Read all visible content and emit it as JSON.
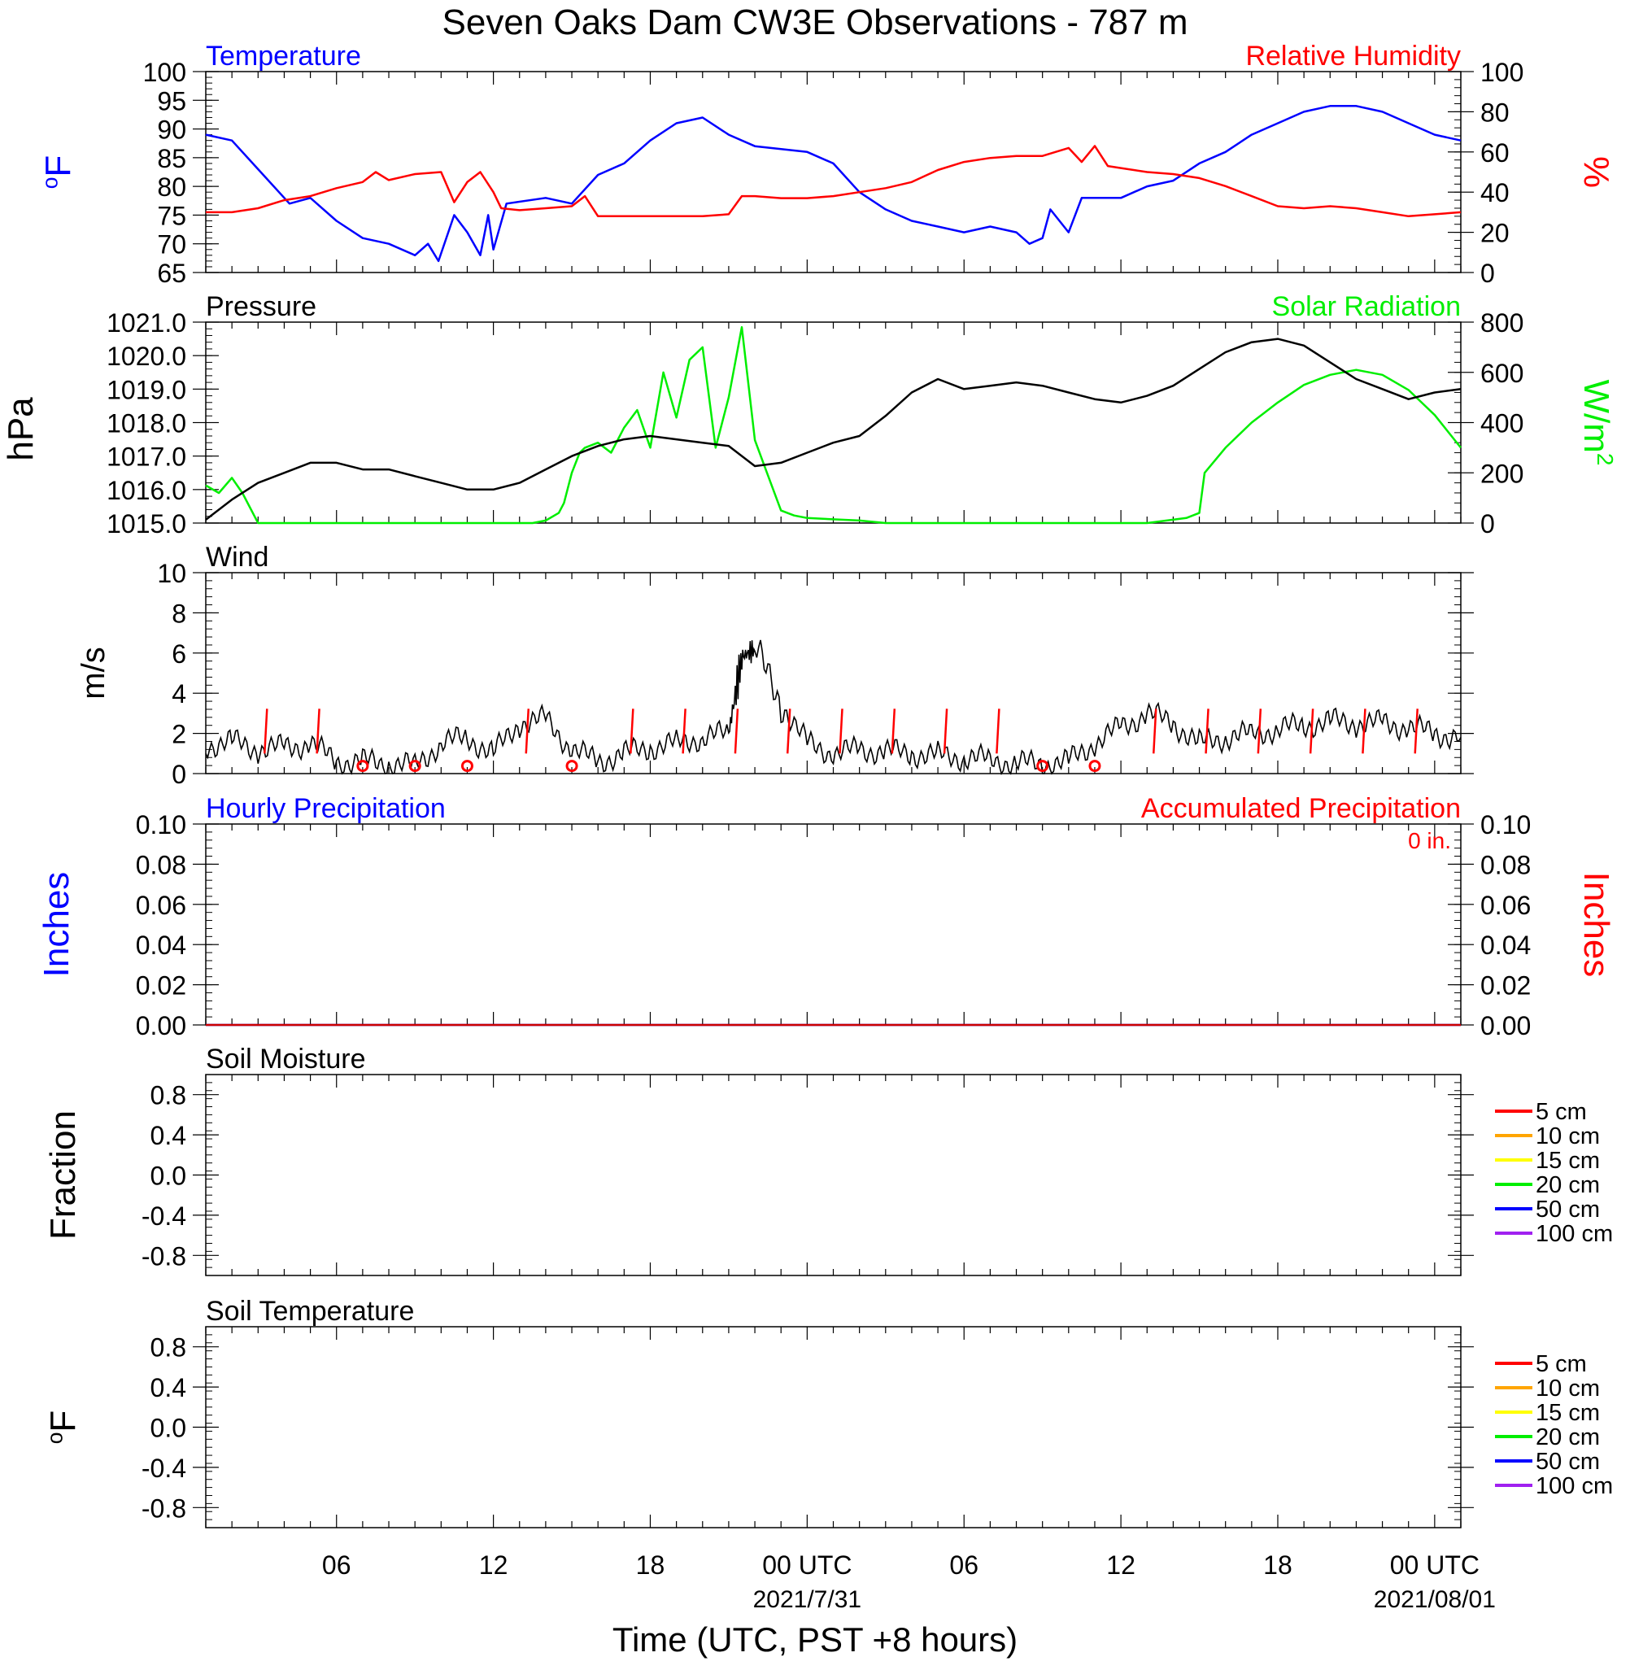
{
  "title": "Seven Oaks Dam CW3E Observations - 787 m",
  "time": {
    "xlabel": "Time (UTC, PST +8 hours)",
    "ticks": [
      {
        "h": 6,
        "label": "06",
        "date": ""
      },
      {
        "h": 12,
        "label": "12",
        "date": ""
      },
      {
        "h": 18,
        "label": "18",
        "date": ""
      },
      {
        "h": 24,
        "label": "00 UTC",
        "date": "2021/7/31"
      },
      {
        "h": 30,
        "label": "06",
        "date": ""
      },
      {
        "h": 36,
        "label": "12",
        "date": ""
      },
      {
        "h": 42,
        "label": "18",
        "date": ""
      },
      {
        "h": 48,
        "label": "00 UTC",
        "date": "2021/08/01"
      }
    ],
    "range_hours": [
      1,
      49
    ]
  },
  "colors": {
    "temperature": "#0000ff",
    "rh": "#ff0000",
    "pressure": "#000000",
    "solar": "#00ee00",
    "wind": "#000000",
    "barb": "#ff0000",
    "precip": "#0000ff",
    "accum": "#cc0000"
  },
  "soil_legend": [
    {
      "label": "5 cm",
      "color": "#ff0000"
    },
    {
      "label": "10 cm",
      "color": "#ffa500"
    },
    {
      "label": "15 cm",
      "color": "#ffff00"
    },
    {
      "label": "20 cm",
      "color": "#00ee00"
    },
    {
      "label": "50 cm",
      "color": "#0000ff"
    },
    {
      "label": "100 cm",
      "color": "#a020f0"
    }
  ],
  "chart_data": [
    {
      "type": "line",
      "title": "Temperature / Relative Humidity",
      "left_title": "Temperature",
      "right_title": "Relative Humidity",
      "ylabel": "oF",
      "y2label": "%",
      "ylim": [
        65,
        100
      ],
      "y2lim": [
        0,
        100
      ],
      "yticks": [
        65,
        70,
        75,
        80,
        85,
        90,
        95,
        100
      ],
      "y2ticks": [
        0,
        20,
        40,
        60,
        80,
        100
      ],
      "series": [
        {
          "name": "Temperature",
          "axis": "left",
          "x": [
            1,
            2,
            3,
            4.2,
            5,
            6,
            7,
            8,
            9,
            9.5,
            9.9,
            10.5,
            11,
            11.5,
            11.8,
            12,
            12.5,
            14,
            15,
            16,
            17,
            18,
            19,
            20,
            21,
            22,
            24,
            25,
            26,
            27,
            28,
            29,
            30,
            31,
            32,
            32.5,
            33,
            33.3,
            34,
            34.5,
            34.8,
            35,
            35.5,
            36,
            37,
            38,
            39,
            40,
            41,
            42,
            43,
            44,
            45,
            46,
            47,
            48,
            49
          ],
          "y": [
            89,
            88,
            83,
            77,
            78,
            74,
            71,
            70,
            68,
            70,
            67,
            75,
            72,
            68,
            75,
            69,
            77,
            78,
            77,
            82,
            84,
            88,
            91,
            92,
            89,
            87,
            86,
            84,
            79,
            76,
            74,
            73,
            72,
            73,
            72,
            70,
            71,
            76,
            72,
            78,
            78,
            78,
            78,
            78,
            80,
            81,
            84,
            86,
            89,
            91,
            93,
            94,
            94,
            93,
            91,
            89,
            88
          ]
        },
        {
          "name": "Relative Humidity",
          "axis": "right",
          "x": [
            1,
            2,
            3,
            4,
            5,
            6,
            7,
            7.5,
            8,
            9,
            10,
            10.5,
            11,
            11.5,
            12,
            12.3,
            13,
            14,
            15,
            15.5,
            16,
            17,
            18,
            19,
            20,
            21,
            21.5,
            22,
            23,
            24,
            25,
            26,
            27,
            28,
            29,
            30,
            31,
            32,
            33,
            33.5,
            34,
            34.5,
            35,
            35.5,
            36,
            37,
            38,
            39,
            40,
            41,
            42,
            43,
            44,
            45,
            46,
            47,
            48,
            49
          ],
          "y": [
            30,
            30,
            32,
            36,
            38,
            42,
            45,
            50,
            46,
            49,
            50,
            35,
            45,
            50,
            40,
            32,
            31,
            32,
            33,
            38,
            28,
            28,
            28,
            28,
            28,
            29,
            38,
            38,
            37,
            37,
            38,
            40,
            42,
            45,
            51,
            55,
            57,
            58,
            58,
            60,
            62,
            55,
            63,
            53,
            52,
            50,
            49,
            47,
            43,
            38,
            33,
            32,
            33,
            32,
            30,
            28,
            29,
            30
          ]
        }
      ]
    },
    {
      "type": "line",
      "title": "Pressure / Solar Radiation",
      "left_title": "Pressure",
      "right_title": "Solar Radiation",
      "ylabel": "hPa",
      "y2label": "W/m2",
      "ylim": [
        1015.0,
        1021.0
      ],
      "y2lim": [
        0,
        800
      ],
      "yticks": [
        1015.0,
        1016.0,
        1017.0,
        1018.0,
        1019.0,
        1020.0,
        1021.0
      ],
      "y2ticks": [
        0,
        200,
        400,
        600,
        800
      ],
      "series": [
        {
          "name": "Pressure",
          "axis": "left",
          "x": [
            1,
            2,
            3,
            4,
            5,
            6,
            7,
            8,
            9,
            10,
            11,
            12,
            13,
            14,
            15,
            16,
            17,
            18,
            19,
            20,
            21,
            22,
            23,
            24,
            25,
            26,
            27,
            28,
            29,
            30,
            31,
            32,
            33,
            34,
            35,
            36,
            37,
            38,
            39,
            40,
            41,
            42,
            43,
            44,
            45,
            46,
            47,
            48,
            49
          ],
          "y": [
            1015.1,
            1015.7,
            1016.2,
            1016.5,
            1016.8,
            1016.8,
            1016.6,
            1016.6,
            1016.4,
            1016.2,
            1016.0,
            1016.0,
            1016.2,
            1016.6,
            1017.0,
            1017.3,
            1017.5,
            1017.6,
            1017.5,
            1017.4,
            1017.3,
            1016.7,
            1016.8,
            1017.1,
            1017.4,
            1017.6,
            1018.2,
            1018.9,
            1019.3,
            1019.0,
            1019.1,
            1019.2,
            1019.1,
            1018.9,
            1018.7,
            1018.6,
            1018.8,
            1019.1,
            1019.6,
            1020.1,
            1020.4,
            1020.5,
            1020.3,
            1019.8,
            1019.3,
            1019.0,
            1018.7,
            1018.9,
            1019.0
          ]
        },
        {
          "name": "Solar Radiation",
          "axis": "right",
          "x": [
            1,
            1.5,
            2,
            2.4,
            3,
            12,
            13.5,
            14,
            14.5,
            14.7,
            15,
            15.3,
            15.5,
            16,
            16.5,
            17,
            17.5,
            18,
            18.5,
            19,
            19.5,
            20,
            20.5,
            21,
            21.5,
            22,
            22.5,
            23,
            23.5,
            24,
            26,
            27,
            35,
            37,
            38.5,
            39,
            39.2,
            40,
            41,
            42,
            43,
            44,
            45,
            46,
            47,
            48,
            49
          ],
          "y": [
            150,
            120,
            180,
            120,
            0,
            0,
            0,
            10,
            40,
            80,
            200,
            280,
            300,
            320,
            280,
            380,
            450,
            300,
            600,
            420,
            650,
            700,
            300,
            500,
            780,
            330,
            190,
            50,
            30,
            20,
            10,
            0,
            0,
            0,
            20,
            40,
            200,
            300,
            400,
            480,
            550,
            590,
            610,
            590,
            530,
            430,
            300
          ]
        }
      ]
    },
    {
      "type": "line",
      "title": "Wind",
      "ylabel": "m/s",
      "ylim": [
        0,
        10
      ],
      "yticks": [
        0,
        2,
        4,
        6,
        8,
        10
      ],
      "series": [
        {
          "name": "Wind",
          "x": [
            1,
            2,
            3,
            4,
            5,
            6,
            7,
            8,
            9,
            10,
            11,
            12,
            13,
            14,
            15,
            16,
            17,
            18,
            19,
            20,
            21,
            21.5,
            22,
            23,
            24,
            25,
            26,
            27,
            28,
            29,
            30,
            31,
            32,
            33,
            34,
            35,
            36,
            37,
            38,
            39,
            40,
            41,
            42,
            43,
            44,
            45,
            46,
            47,
            48,
            49
          ],
          "y": [
            1.4,
            1.6,
            1.2,
            1.3,
            1.5,
            0.6,
            0.6,
            0.5,
            0.4,
            1.5,
            1.8,
            1.0,
            2.5,
            2.7,
            1.2,
            0.6,
            1.0,
            1.3,
            1.5,
            1.8,
            2.0,
            5.8,
            6.2,
            3.5,
            1.5,
            1.0,
            1.2,
            1.1,
            1.0,
            0.9,
            0.8,
            0.7,
            0.5,
            0.5,
            0.6,
            1.5,
            2.3,
            3.0,
            2.5,
            1.5,
            1.8,
            2.0,
            2.2,
            2.4,
            2.6,
            2.5,
            2.5,
            2.3,
            2.0,
            1.8
          ]
        }
      ],
      "barbs_hours": [
        3,
        5,
        7,
        9,
        11,
        13,
        15,
        17,
        19,
        21,
        23,
        25,
        27,
        29,
        31,
        33,
        35,
        37,
        39,
        41,
        43,
        45,
        47
      ],
      "calm_hours": [
        7,
        9,
        11,
        15,
        33,
        35
      ]
    },
    {
      "type": "line",
      "title": "Hourly / Accumulated Precipitation",
      "left_title": "Hourly Precipitation",
      "right_title": "Accumulated Precipitation",
      "annotation": "0 in.",
      "ylabel": "Inches",
      "y2label": "Inches",
      "ylim": [
        0,
        0.1
      ],
      "y2lim": [
        0,
        0.1
      ],
      "yticks": [
        "0.00",
        "0.02",
        "0.04",
        "0.06",
        "0.08",
        "0.10"
      ],
      "y2ticks": [
        "0.00",
        "0.02",
        "0.04",
        "0.06",
        "0.08",
        "0.10"
      ],
      "series": [
        {
          "name": "Hourly Precipitation",
          "x": [
            1,
            49
          ],
          "y": [
            0,
            0
          ]
        },
        {
          "name": "Accumulated Precipitation",
          "x": [
            1,
            49
          ],
          "y": [
            0,
            0
          ]
        }
      ]
    },
    {
      "type": "line",
      "title": "Soil Moisture",
      "ylabel": "Fraction",
      "ylim": [
        -1,
        1
      ],
      "yticks": [
        "-0.8",
        "-0.4",
        "0.0",
        "0.4",
        "0.8"
      ],
      "series": []
    },
    {
      "type": "line",
      "title": "Soil Temperature",
      "ylabel": "oF",
      "ylim": [
        -1,
        1
      ],
      "yticks": [
        "-0.8",
        "-0.4",
        "0.0",
        "0.4",
        "0.8"
      ],
      "series": []
    }
  ]
}
